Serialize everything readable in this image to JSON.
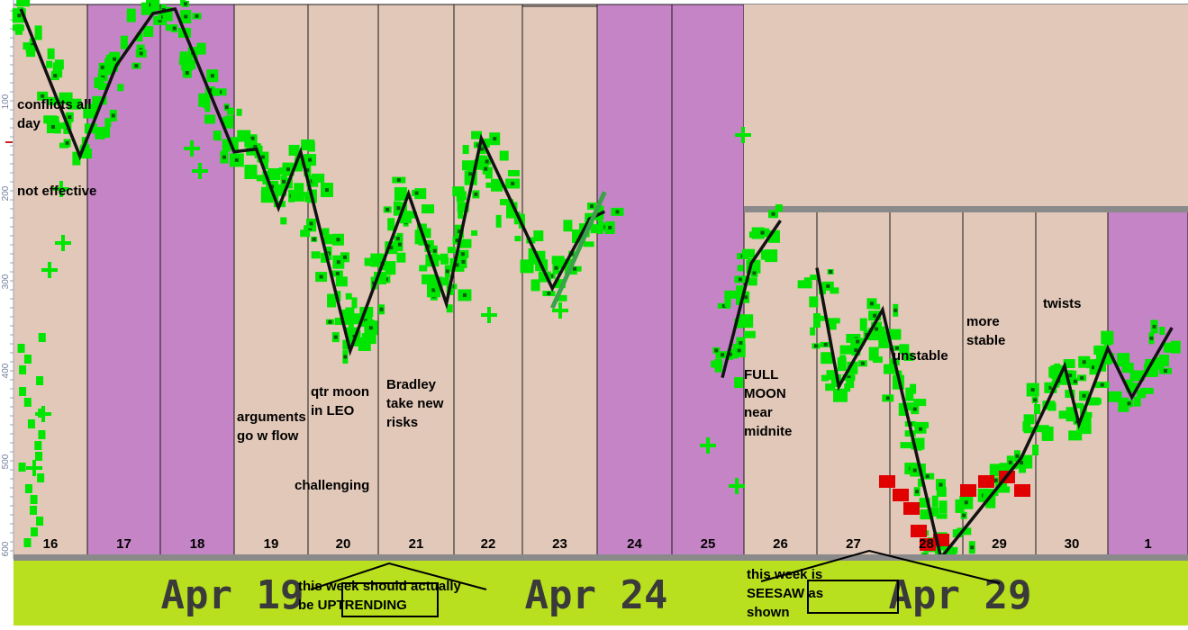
{
  "chart_data": {
    "type": "line",
    "title": "",
    "xlabel": "",
    "ylabel": "",
    "grid": false,
    "y_ticks": [
      "100",
      "200",
      "300",
      "400",
      "500",
      "600"
    ],
    "days": [
      {
        "label": "16",
        "shade": "beige"
      },
      {
        "label": "17",
        "shade": "purple"
      },
      {
        "label": "18",
        "shade": "purple"
      },
      {
        "label": "19",
        "shade": "beige"
      },
      {
        "label": "20",
        "shade": "beige"
      },
      {
        "label": "21",
        "shade": "beige"
      },
      {
        "label": "22",
        "shade": "beige"
      },
      {
        "label": "23",
        "shade": "beige"
      },
      {
        "label": "24",
        "shade": "purple"
      },
      {
        "label": "25",
        "shade": "purple"
      },
      {
        "label": "26",
        "shade": "beige"
      },
      {
        "label": "27",
        "shade": "beige"
      },
      {
        "label": "28",
        "shade": "beige"
      },
      {
        "label": "29",
        "shade": "beige"
      },
      {
        "label": "30",
        "shade": "beige"
      },
      {
        "label": "1",
        "shade": "purple"
      }
    ],
    "date_labels": [
      "Apr 19",
      "Apr 24",
      "Apr 29"
    ],
    "series": [
      {
        "style": "black trend line",
        "points": [
          [
            16.1,
            5
          ],
          [
            16.9,
            170
          ],
          [
            17.4,
            68
          ],
          [
            17.9,
            10
          ],
          [
            18.2,
            5
          ],
          [
            19.0,
            165
          ],
          [
            19.3,
            162
          ],
          [
            19.6,
            228
          ],
          [
            19.9,
            165
          ],
          [
            20.6,
            388
          ],
          [
            21.4,
            212
          ],
          [
            21.9,
            335
          ],
          [
            22.4,
            150
          ],
          [
            23.4,
            318
          ],
          [
            23.9,
            240
          ],
          [
            24.1,
            232
          ]
        ]
      },
      {
        "style": "black trend line",
        "points": [
          [
            25.7,
            418
          ],
          [
            26.1,
            290
          ],
          [
            26.5,
            242
          ]
        ]
      },
      {
        "style": "black trend line",
        "points": [
          [
            27.0,
            295
          ],
          [
            27.3,
            428
          ],
          [
            27.9,
            342
          ],
          [
            28.7,
            620
          ],
          [
            29.8,
            508
          ],
          [
            30.4,
            405
          ],
          [
            30.6,
            470
          ],
          [
            31.0,
            385
          ],
          [
            31.3,
            440
          ],
          [
            31.8,
            362
          ]
        ]
      }
    ],
    "annotations": [
      "conflicts all day",
      "not effective",
      "arguments go w flow",
      "qtr moon in LEO",
      "challenging",
      "Bradley take new risks",
      "FULL MOON near midnite",
      "unstable",
      "more stable",
      "twists",
      "this week should actually be UPTRENDING",
      "this week is SEESAW as shown"
    ]
  },
  "colors": {
    "beige": "#e2c8b8",
    "purple": "#c584c6",
    "green": "#00e600",
    "dark_green": "#0a5a0a",
    "red": "#e00000",
    "lime_band": "#b8e01e",
    "gray_bar": "#8a8a8a",
    "trend": "#111111"
  }
}
